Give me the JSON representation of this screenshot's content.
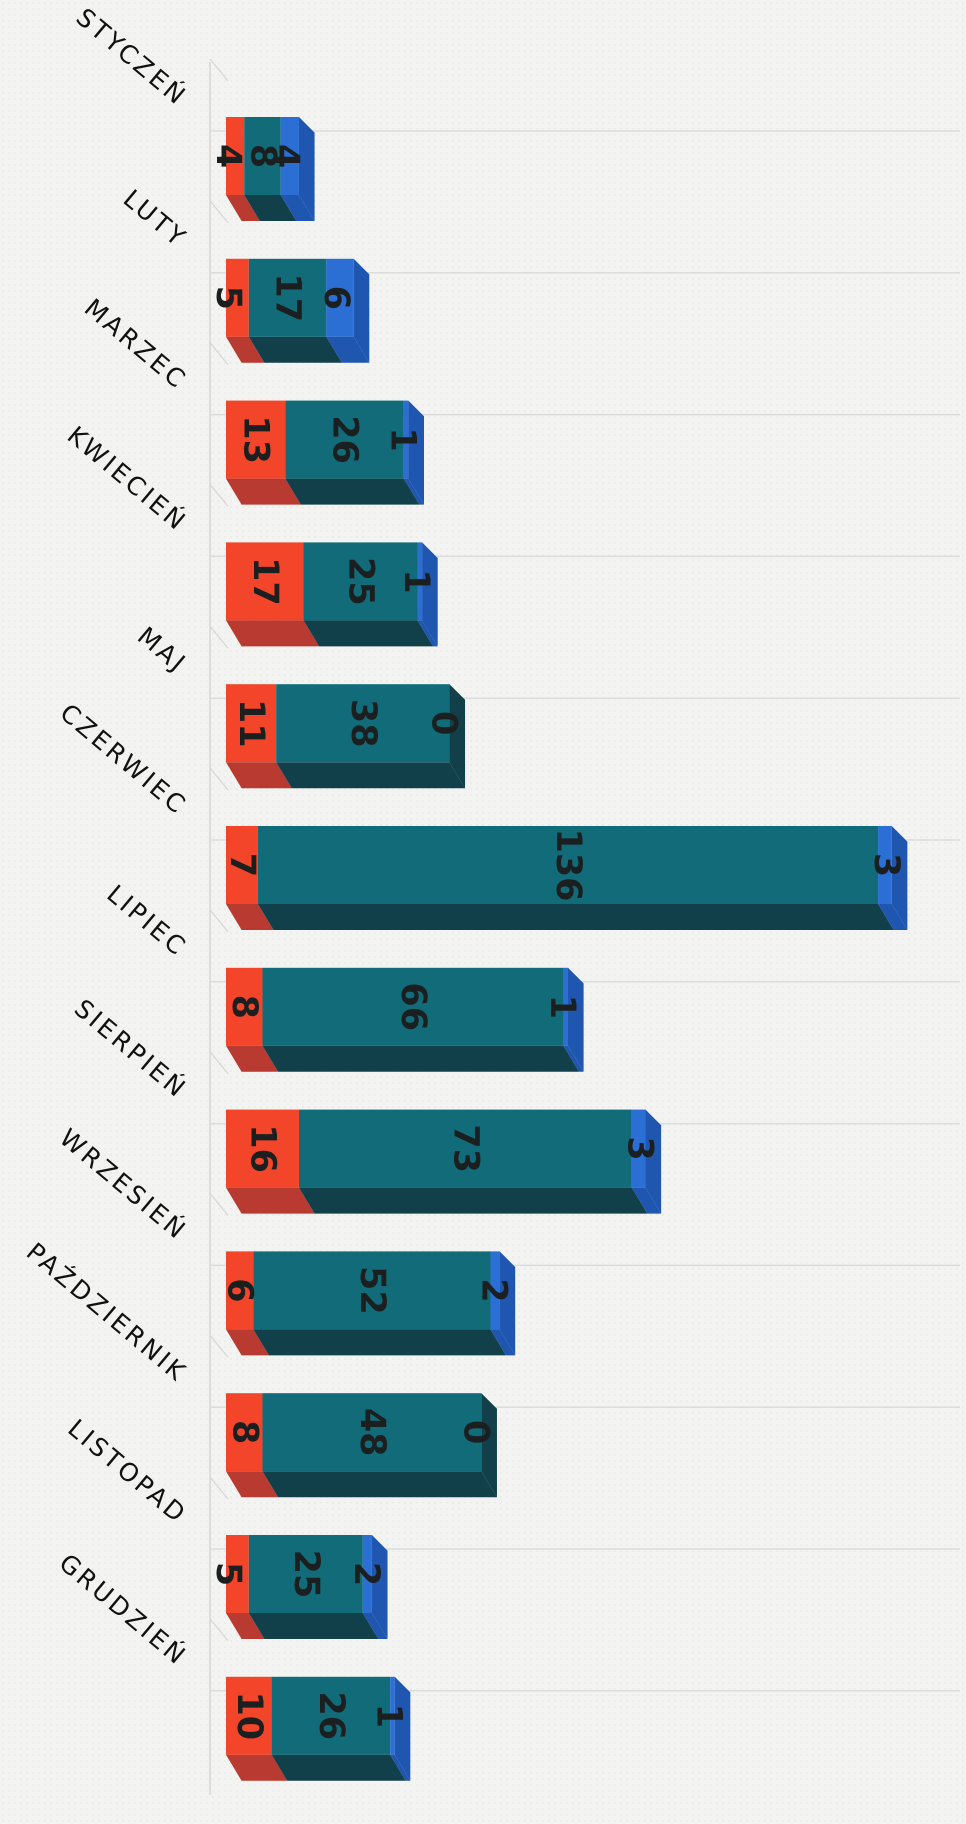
{
  "chart_data": {
    "type": "bar",
    "orientation": "horizontal",
    "stacked": true,
    "three_d": true,
    "categories": [
      "STYCZEŃ",
      "LUTY",
      "MARZEC",
      "KWIECIEŃ",
      "MAJ",
      "CZERWIEC",
      "LIPIEC",
      "SIERPIEŃ",
      "WRZESIEŃ",
      "PAŹDZIERNIK",
      "LISTOPAD",
      "GRUDZIEŃ"
    ],
    "series": [
      {
        "values": [
          4,
          5,
          13,
          17,
          11,
          7,
          8,
          16,
          6,
          8,
          5,
          10
        ],
        "color": "#f2452a",
        "side_color": "#b83a30"
      },
      {
        "values": [
          8,
          17,
          26,
          25,
          38,
          136,
          66,
          73,
          52,
          48,
          25,
          26
        ],
        "color": "#126b78",
        "side_color": "#12404a"
      },
      {
        "values": [
          4,
          6,
          1,
          1,
          0,
          3,
          1,
          3,
          2,
          0,
          2,
          1
        ],
        "color": "#2b6fd4",
        "side_color": "#1f56b0"
      }
    ],
    "title": "",
    "xlabel": "",
    "ylabel": "",
    "grid": true,
    "legend": "none"
  }
}
